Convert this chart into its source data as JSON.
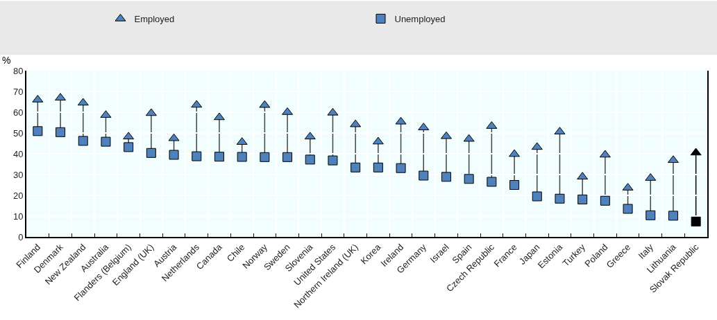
{
  "chart_data": {
    "type": "scatter",
    "ylabel": "%",
    "categories": [
      "Finland",
      "Denmark",
      "New Zealand",
      "Australia",
      "Flanders (Belgium)",
      "England (UK)",
      "Austria",
      "Netherlands",
      "Canada",
      "Chile",
      "Norway",
      "Sweden",
      "Slovenia",
      "United States",
      "Northern Ireland (UK)",
      "Korea",
      "Ireland",
      "Germany",
      "Israel",
      "Spain",
      "Czech Republic",
      "France",
      "Japan",
      "Estonia",
      "Turkey",
      "Poland",
      "Greece",
      "Italy",
      "Lithuania",
      "Slovak Republic"
    ],
    "series": [
      {
        "name": "Employed",
        "marker": "triangle",
        "colors": [
          "#4f81bd",
          "#4f81bd",
          "#4f81bd",
          "#4f81bd",
          "#4f81bd",
          "#4f81bd",
          "#4f81bd",
          "#4f81bd",
          "#4f81bd",
          "#4f81bd",
          "#4f81bd",
          "#4f81bd",
          "#4f81bd",
          "#4f81bd",
          "#4f81bd",
          "#4f81bd",
          "#4f81bd",
          "#4f81bd",
          "#4f81bd",
          "#4f81bd",
          "#4f81bd",
          "#4f81bd",
          "#4f81bd",
          "#4f81bd",
          "#4f81bd",
          "#4f81bd",
          "#4f81bd",
          "#4f81bd",
          "#4f81bd",
          "#000000"
        ],
        "values": [
          66.0,
          66.9,
          64.5,
          58.6,
          48.2,
          59.5,
          47.4,
          63.5,
          57.5,
          45.6,
          63.4,
          60.0,
          48.2,
          59.7,
          54.1,
          45.8,
          55.4,
          52.6,
          48.4,
          47.1,
          53.3,
          39.8,
          43.2,
          50.6,
          28.9,
          39.5,
          23.6,
          28.3,
          36.9,
          40.5
        ]
      },
      {
        "name": "Unemployed",
        "marker": "square",
        "colors": [
          "#4f81bd",
          "#4f81bd",
          "#4f81bd",
          "#4f81bd",
          "#4f81bd",
          "#4f81bd",
          "#4f81bd",
          "#4f81bd",
          "#4f81bd",
          "#4f81bd",
          "#4f81bd",
          "#4f81bd",
          "#4f81bd",
          "#4f81bd",
          "#4f81bd",
          "#4f81bd",
          "#4f81bd",
          "#4f81bd",
          "#4f81bd",
          "#4f81bd",
          "#4f81bd",
          "#4f81bd",
          "#4f81bd",
          "#4f81bd",
          "#4f81bd",
          "#4f81bd",
          "#4f81bd",
          "#4f81bd",
          "#4f81bd",
          "#000000"
        ],
        "values": [
          50.9,
          50.4,
          46.2,
          45.8,
          43.2,
          40.4,
          39.5,
          38.8,
          38.6,
          38.5,
          38.4,
          38.4,
          37.2,
          36.8,
          33.4,
          33.4,
          33.1,
          29.5,
          28.9,
          27.9,
          26.5,
          25.0,
          19.5,
          18.4,
          18.0,
          17.4,
          13.5,
          10.4,
          10.2,
          7.4
        ]
      }
    ],
    "ylim": [
      0,
      80
    ],
    "yticks": [
      0,
      10,
      20,
      30,
      40,
      50,
      60,
      70,
      80
    ],
    "grid": true,
    "legend": "top"
  }
}
